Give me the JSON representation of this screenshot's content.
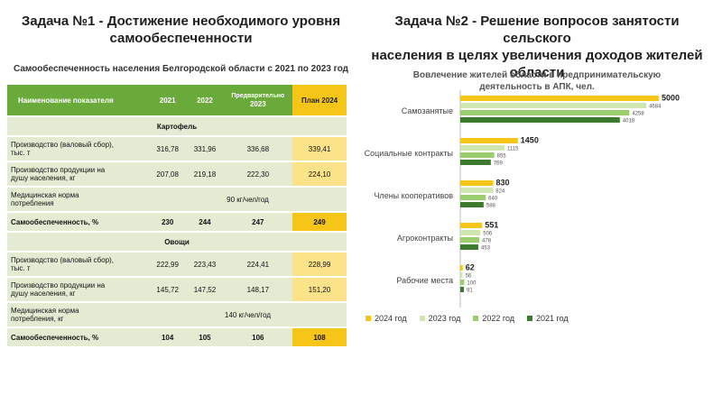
{
  "left": {
    "title_line1": "Задача №1 - Достижение необходимого уровня",
    "title_line2": "самообеспеченности",
    "subtitle": "Самообеспеченность населения Белгородской области с 2021 по 2023 год",
    "headers": {
      "name": "Наименование показателя",
      "y2021": "2021",
      "y2022": "2022",
      "prelim_line1": "Предварительно",
      "prelim_line2": "2023",
      "plan": "План 2024"
    },
    "potato": {
      "label": "Картофель",
      "production": {
        "name_line1": "Производство (валовый сбор),",
        "name_line2": "тыс. т",
        "v2021": "316,78",
        "v2022": "331,96",
        "v2023": "336,68",
        "plan": "339,41"
      },
      "per_capita": {
        "name_line1": "Производство продукции на",
        "name_line2": "душу населения, кг",
        "v2021": "207,08",
        "v2022": "219,18",
        "v2023": "222,30",
        "plan": "224,10"
      },
      "norm": {
        "name_line1": "Медицинская норма",
        "name_line2": "потребления",
        "value": "90 кг/чел/год"
      },
      "self": {
        "name": "Самообеспеченность, %",
        "v2021": "230",
        "v2022": "244",
        "v2023": "247",
        "plan": "249"
      }
    },
    "veg": {
      "label": "Овощи",
      "production": {
        "name_line1": "Производство (валовый сбор),",
        "name_line2": "тыс. т",
        "v2021": "222,99",
        "v2022": "223,43",
        "v2023": "224,41",
        "plan": "228,99"
      },
      "per_capita": {
        "name_line1": "Производство продукции на",
        "name_line2": "душу населения, кг",
        "v2021": "145,72",
        "v2022": "147,52",
        "v2023": "148,17",
        "plan": "151,20"
      },
      "norm": {
        "name_line1": "Медицинская норма",
        "name_line2": "потребления, кг",
        "value": "140 кг/чел/год"
      },
      "self": {
        "name": "Самообеспеченность, %",
        "v2021": "104",
        "v2022": "105",
        "v2023": "106",
        "plan": "108"
      }
    }
  },
  "right": {
    "title_line1": "Задача №2 - Решение вопросов занятости сельского",
    "title_line2": "населения в целях увеличения доходов жителей",
    "title_line3": "области"
  },
  "colors": {
    "y2024": "#f5c518",
    "y2023": "#cfe6b0",
    "y2022": "#9ccd6e",
    "y2021": "#3e7a2e"
  },
  "chart_data": {
    "type": "bar",
    "orientation": "horizontal",
    "title_line1": "Вовлечение жителей области в предпринимательскую",
    "title_line2": "деятельность в АПК, чел.",
    "categories": [
      "Самозанятые",
      "Социальные контракты",
      "Члены кооперативов",
      "Агроконтракты",
      "Рабочие места"
    ],
    "series": [
      {
        "name": "2024 год",
        "values": [
          5000,
          1450,
          830,
          551,
          62
        ]
      },
      {
        "name": "2023 год",
        "values": [
          4684,
          1115,
          824,
          506,
          56
        ]
      },
      {
        "name": "2022 год",
        "values": [
          4258,
          855,
          640,
          478,
          100
        ]
      },
      {
        "name": "2021 год",
        "values": [
          4018,
          769,
          588,
          453,
          91
        ]
      }
    ],
    "xlim": [
      0,
      5000
    ],
    "legend": "bottom"
  }
}
